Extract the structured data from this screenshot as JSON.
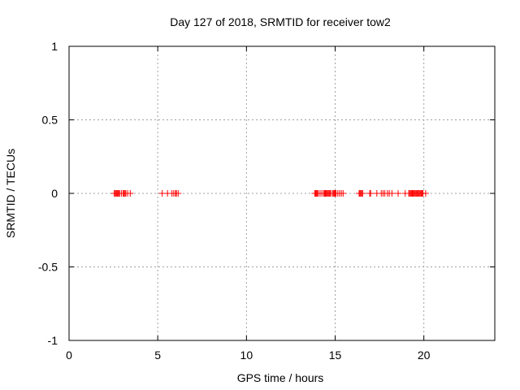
{
  "chart_data": {
    "type": "scatter",
    "title": "Day 127 of 2018, SRMTID for receiver tow2",
    "xlabel": "GPS time / hours",
    "ylabel": "SRMTID / TECUs",
    "xlim": [
      0,
      24
    ],
    "ylim": [
      -1,
      1
    ],
    "xticks": [
      0,
      5,
      10,
      15,
      20
    ],
    "xtick_labels": [
      "0",
      "5",
      "10",
      "15",
      "20"
    ],
    "yticks": [
      1,
      0.5,
      0,
      -0.5,
      -1
    ],
    "ytick_labels": [
      "1",
      "0.5",
      "0",
      "-0.5",
      "-1"
    ],
    "grid": true,
    "marker": "plus",
    "color": "#ff0000",
    "series": [
      {
        "x": [
          2.55,
          2.6,
          2.65,
          2.7,
          2.75,
          2.8,
          2.85,
          2.95,
          3.05,
          3.1,
          3.15,
          3.2,
          3.3,
          3.45,
          5.25,
          5.55,
          5.8,
          5.9,
          6.0,
          6.05,
          6.15,
          13.85,
          13.9,
          13.95,
          14.0,
          14.05,
          14.15,
          14.25,
          14.35,
          14.4,
          14.45,
          14.5,
          14.55,
          14.6,
          14.65,
          14.7,
          14.75,
          14.85,
          14.9,
          14.95,
          15.0,
          15.05,
          15.15,
          15.25,
          15.35,
          15.45,
          16.35,
          16.4,
          16.45,
          16.5,
          16.55,
          16.95,
          17.0,
          17.35,
          17.6,
          17.7,
          17.8,
          17.95,
          18.05,
          18.2,
          18.55,
          18.95,
          19.15,
          19.2,
          19.25,
          19.3,
          19.35,
          19.4,
          19.45,
          19.5,
          19.55,
          19.6,
          19.65,
          19.7,
          19.75,
          19.8,
          19.85,
          19.9,
          19.95,
          20.1
        ],
        "y": [
          0,
          0,
          0,
          0,
          0,
          0,
          0,
          0,
          0,
          0,
          0,
          0,
          0,
          0,
          0,
          0,
          0,
          0,
          0,
          0,
          0,
          0,
          0,
          0,
          0,
          0,
          0,
          0,
          0,
          0,
          0,
          0,
          0,
          0,
          0,
          0,
          0,
          0,
          0,
          0,
          0,
          0,
          0,
          0,
          0,
          0,
          0,
          0,
          0,
          0,
          0,
          0,
          0,
          0,
          0,
          0,
          0,
          0,
          0,
          0,
          0,
          0,
          0,
          0,
          0,
          0,
          0,
          0,
          0,
          0,
          0,
          0,
          0,
          0,
          0,
          0,
          0,
          0,
          0,
          0
        ]
      }
    ]
  }
}
